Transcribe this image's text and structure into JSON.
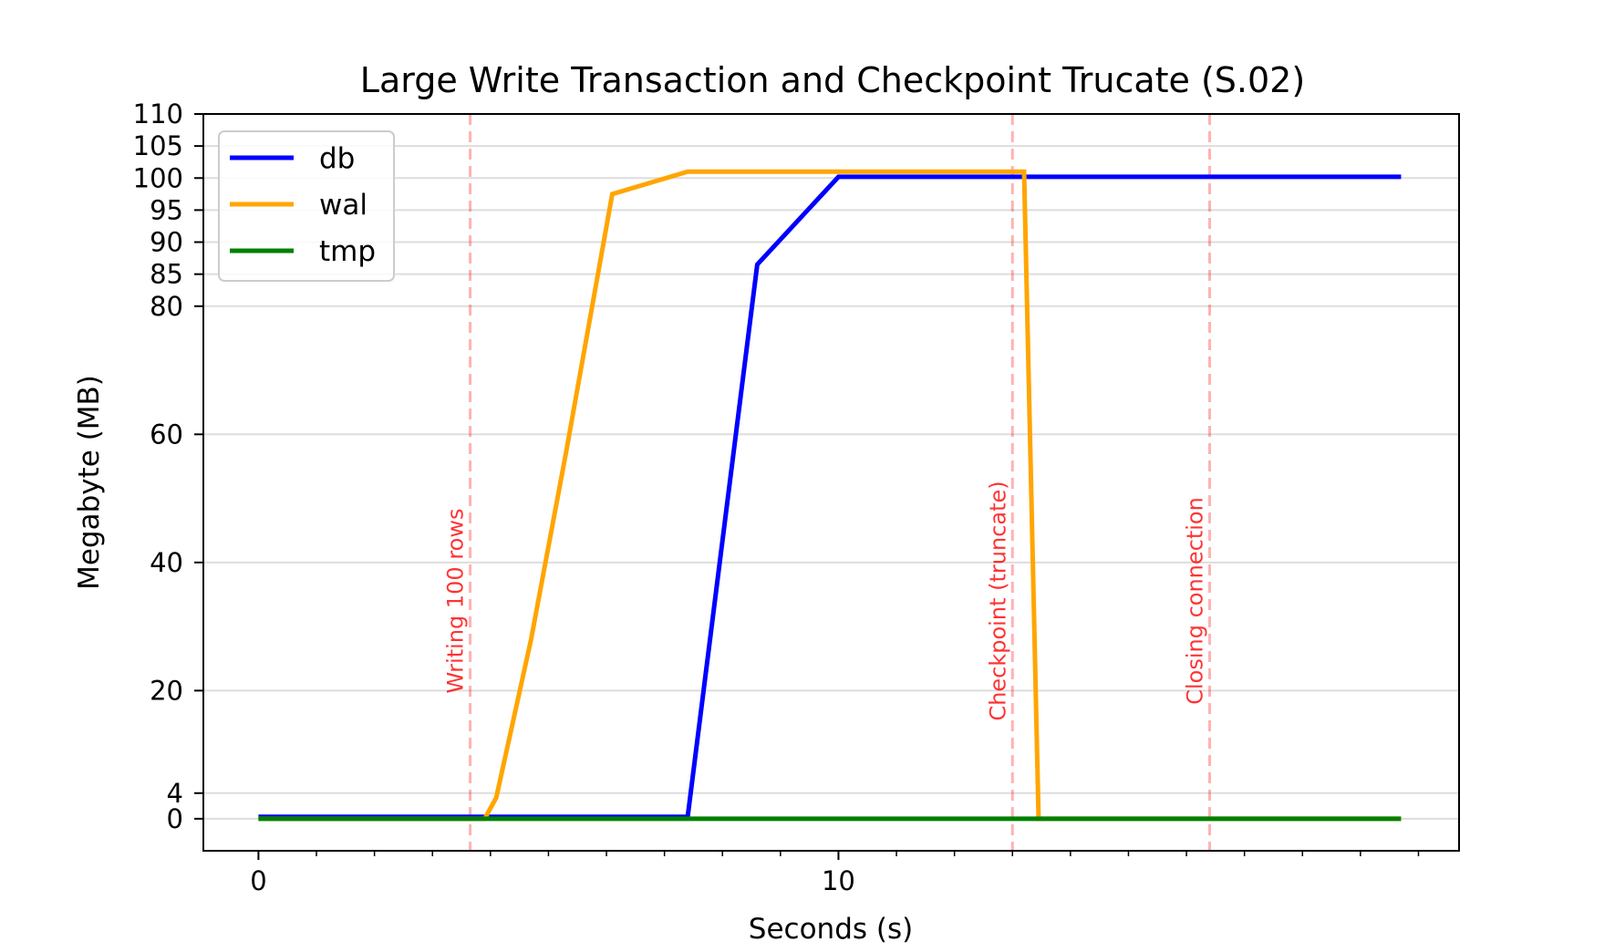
{
  "chart_data": {
    "type": "line",
    "title": "Large Write Transaction and Checkpoint Trucate (S.02)",
    "xlabel": "Seconds (s)",
    "ylabel": "Megabyte (MB)",
    "xlim": [
      -0.95,
      20.7
    ],
    "ylim": [
      -5,
      110
    ],
    "xticks": [
      0,
      10
    ],
    "xtick_labels": [
      "0",
      "10"
    ],
    "x_minor_ticks": [
      1,
      2,
      3,
      4,
      5,
      6,
      7,
      8,
      9,
      11,
      12,
      13,
      14,
      15,
      16,
      17,
      18,
      19,
      20
    ],
    "yticks": [
      0,
      4,
      20,
      40,
      60,
      80,
      85,
      90,
      95,
      100,
      105,
      110
    ],
    "ytick_labels": [
      "0",
      "4",
      "20",
      "40",
      "60",
      "80",
      "85",
      "90",
      "95",
      "100",
      "105",
      "110"
    ],
    "grid": "horizontal",
    "legend": "top-left",
    "series": [
      {
        "name": "db",
        "color": "#0000ff",
        "x": [
          0,
          7.4,
          8.6,
          10.0,
          19.7
        ],
        "y": [
          0.3,
          0.3,
          86.5,
          100.2,
          100.2
        ]
      },
      {
        "name": "wal",
        "color": "#ffa500",
        "x": [
          0,
          3.9,
          4.1,
          4.7,
          5.3,
          6.1,
          7.4,
          10.0,
          13.2,
          13.45,
          19.7
        ],
        "y": [
          0,
          0,
          3.3,
          28,
          57,
          97.5,
          101,
          101,
          101,
          0,
          0
        ]
      },
      {
        "name": "tmp",
        "color": "#008000",
        "x": [
          0,
          19.7
        ],
        "y": [
          0,
          0
        ]
      }
    ],
    "annotations": [
      {
        "x": 3.65,
        "text": "Writing 100 rows",
        "color": "#ff0000"
      },
      {
        "x": 13.0,
        "text": "Checkpoint (truncate)",
        "color": "#ff0000"
      },
      {
        "x": 16.4,
        "text": "Closing connection",
        "color": "#ff0000"
      }
    ]
  }
}
